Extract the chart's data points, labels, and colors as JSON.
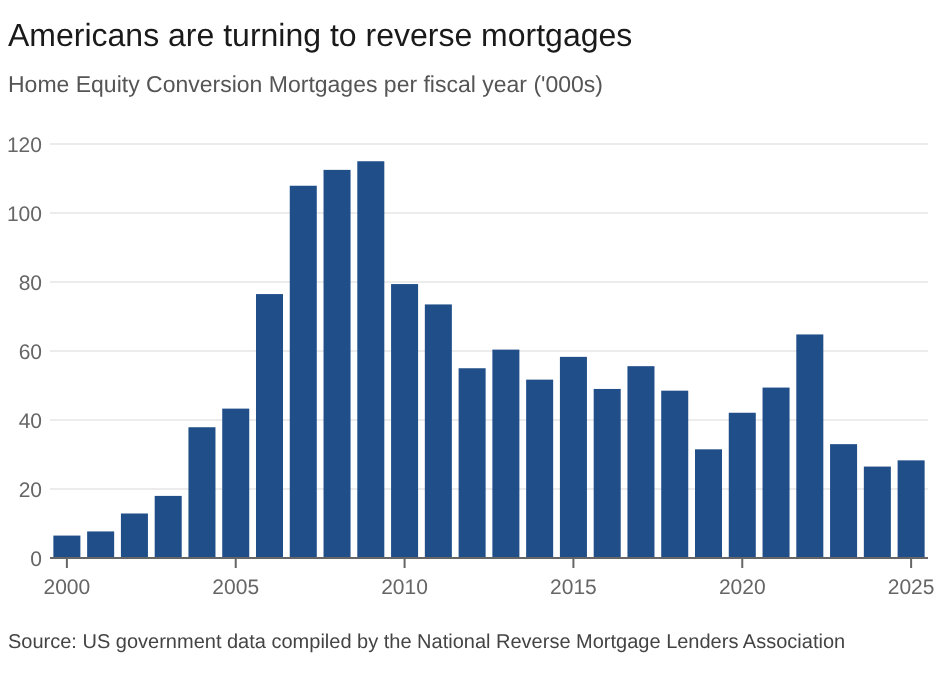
{
  "chart_data": {
    "type": "bar",
    "title": "Americans are turning to reverse mortgages",
    "subtitle": "Home Equity Conversion Mortgages per fiscal year ('000s)",
    "x": [
      2000,
      2001,
      2002,
      2003,
      2004,
      2005,
      2006,
      2007,
      2008,
      2009,
      2010,
      2011,
      2012,
      2013,
      2014,
      2015,
      2016,
      2017,
      2018,
      2019,
      2020,
      2021,
      2022,
      2023,
      2024,
      2025
    ],
    "values": [
      6.5,
      7.7,
      12.9,
      18,
      37.9,
      43.3,
      76.5,
      107.9,
      112.5,
      115,
      79.4,
      73.5,
      55,
      60.4,
      51.7,
      58.3,
      49,
      55.6,
      48.5,
      31.5,
      42.1,
      49.4,
      64.8,
      33,
      26.5,
      28.3
    ],
    "color": "#1f4e89",
    "xlim": [
      1999.5,
      2025.5
    ],
    "xticks": [
      2000,
      2005,
      2010,
      2015,
      2020,
      2025
    ],
    "ylim": [
      0,
      120
    ],
    "yticks": [
      0,
      20,
      40,
      60,
      80,
      100,
      120
    ],
    "grid": "y",
    "annotations": [
      "Source: US government data compiled by the National Reverse Mortgage Lenders Association"
    ]
  }
}
